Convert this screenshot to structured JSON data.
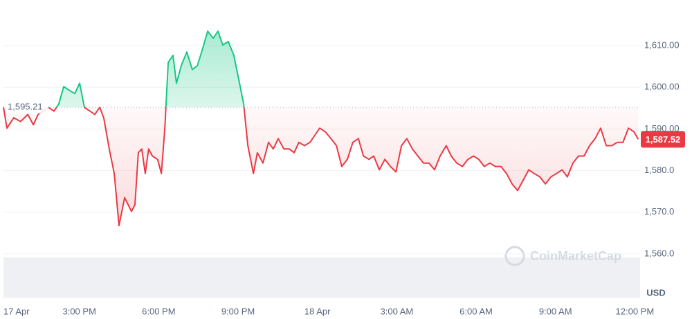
{
  "chart_data": {
    "type": "line",
    "x": [
      12.13,
      12.26,
      12.52,
      12.78,
      13.05,
      13.26,
      13.44,
      13.83,
      14.04,
      14.22,
      14.41,
      14.62,
      14.83,
      15.01,
      15.19,
      15.4,
      15.58,
      15.77,
      15.92,
      16.13,
      16.32,
      16.5,
      16.71,
      16.97,
      17.1,
      17.23,
      17.36,
      17.49,
      17.62,
      17.76,
      17.96,
      18.1,
      18.23,
      18.36,
      18.54,
      18.67,
      18.85,
      19.06,
      19.27,
      19.46,
      19.66,
      19.85,
      20.06,
      20.24,
      20.42,
      20.63,
      20.84,
      21.03,
      21.21,
      21.37,
      21.58,
      21.73,
      21.94,
      22.15,
      22.33,
      22.52,
      22.73,
      22.94,
      23.12,
      23.3,
      23.51,
      23.72,
      23.9,
      24.09,
      24.3,
      24.51,
      24.72,
      24.92,
      25.13,
      25.34,
      25.55,
      25.74,
      25.95,
      26.13,
      26.34,
      26.55,
      26.76,
      26.97,
      27.18,
      27.38,
      27.59,
      27.8,
      28.01,
      28.22,
      28.43,
      28.64,
      28.87,
      29.06,
      29.27,
      29.48,
      29.69,
      29.9,
      30.1,
      30.31,
      30.52,
      30.73,
      30.94,
      31.15,
      31.36,
      31.57,
      31.78,
      31.99,
      32.2,
      32.41,
      32.62,
      32.83,
      33.04,
      33.25,
      33.45,
      33.66,
      33.87,
      34.08,
      34.29,
      34.5,
      34.71,
      34.92,
      35.13,
      35.34,
      35.55,
      35.76,
      35.97,
      36.13
    ],
    "values": [
      1595.21,
      1590.2,
      1592.7,
      1591.8,
      1593.5,
      1591.0,
      1593.5,
      1595.2,
      1594.3,
      1596.0,
      1600.2,
      1599.3,
      1598.5,
      1601.0,
      1595.2,
      1594.3,
      1593.5,
      1595.2,
      1592.7,
      1585.2,
      1579.3,
      1566.8,
      1573.5,
      1570.2,
      1571.8,
      1584.3,
      1585.2,
      1579.3,
      1585.2,
      1583.5,
      1582.7,
      1579.3,
      1590.2,
      1606.0,
      1607.7,
      1601.0,
      1605.2,
      1608.5,
      1604.3,
      1605.2,
      1609.3,
      1613.5,
      1611.8,
      1613.5,
      1610.2,
      1611.0,
      1607.7,
      1601.8,
      1596.0,
      1586.0,
      1579.3,
      1584.3,
      1581.8,
      1586.8,
      1585.2,
      1587.7,
      1585.2,
      1585.2,
      1584.3,
      1586.8,
      1586.0,
      1586.8,
      1588.5,
      1590.2,
      1589.3,
      1587.7,
      1586.0,
      1581.0,
      1582.7,
      1586.8,
      1587.7,
      1583.5,
      1582.7,
      1583.5,
      1580.2,
      1582.7,
      1581.0,
      1579.7,
      1586.0,
      1587.7,
      1585.2,
      1583.5,
      1581.8,
      1581.8,
      1580.2,
      1583.5,
      1586.0,
      1583.5,
      1581.8,
      1581.0,
      1582.7,
      1583.5,
      1582.7,
      1581.0,
      1581.8,
      1581.0,
      1581.0,
      1579.3,
      1576.8,
      1575.2,
      1577.7,
      1580.2,
      1579.3,
      1578.5,
      1576.8,
      1578.5,
      1579.3,
      1580.2,
      1578.5,
      1581.8,
      1583.5,
      1583.5,
      1586.0,
      1587.7,
      1590.2,
      1586.0,
      1586.0,
      1586.8,
      1586.8,
      1590.2,
      1589.3,
      1587.52
    ],
    "up_color": "#16c784",
    "down_color": "#ea3943",
    "baseline": {
      "value": 1595.21,
      "label": "1,595.21"
    },
    "current_price": {
      "value": 1587.52,
      "label": "1,587.52"
    },
    "xlim": [
      12.13,
      36.2
    ],
    "xticks": [
      {
        "value": 12,
        "label": "17 Apr"
      },
      {
        "value": 15,
        "label": "3:00 PM"
      },
      {
        "value": 18,
        "label": "6:00 PM"
      },
      {
        "value": 21,
        "label": "9:00 PM"
      },
      {
        "value": 24,
        "label": "18 Apr"
      },
      {
        "value": 27,
        "label": "3:00 AM"
      },
      {
        "value": 30,
        "label": "6:00 AM"
      },
      {
        "value": 33,
        "label": "9:00 AM"
      },
      {
        "value": 36,
        "label": "12:00 PM"
      }
    ],
    "ylim": [
      1549.5,
      1621
    ],
    "yticks": [
      {
        "value": 1560,
        "label": "1,560.0"
      },
      {
        "value": 1570,
        "label": "1,570.0"
      },
      {
        "value": 1580,
        "label": "1,580.0"
      },
      {
        "value": 1590,
        "label": "1,590.00"
      },
      {
        "value": 1600,
        "label": "1,600.00"
      },
      {
        "value": 1610,
        "label": "1,610.00"
      }
    ],
    "y_unit": "USD",
    "watermark": "CoinMarketCap",
    "grid": true
  }
}
